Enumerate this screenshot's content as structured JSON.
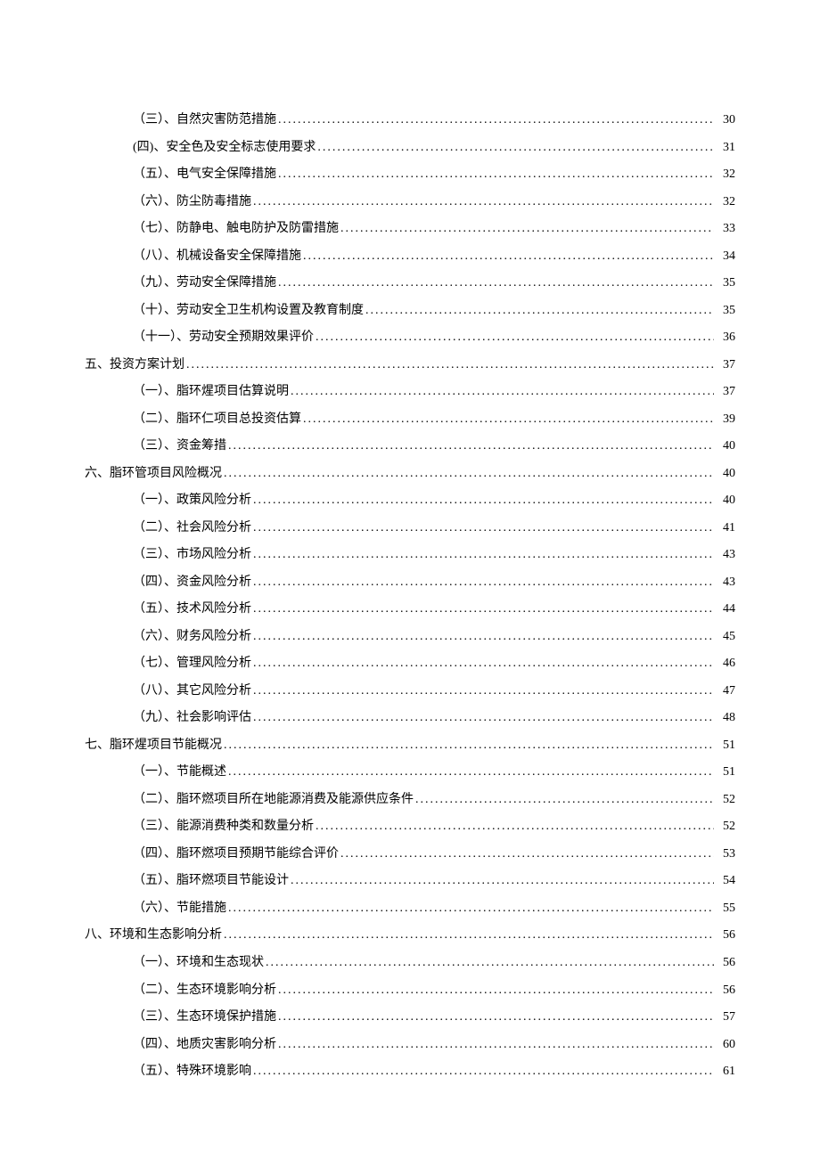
{
  "toc": {
    "entries": [
      {
        "level": 2,
        "label": "（三）、自然灾害防范措施",
        "page": "30"
      },
      {
        "level": 2,
        "label": "(四)、安全色及安全标志使用要求",
        "page": "31"
      },
      {
        "level": 2,
        "label": "（五）、电气安全保障措施",
        "page": "32"
      },
      {
        "level": 2,
        "label": "（六）、防尘防毒措施",
        "page": "32"
      },
      {
        "level": 2,
        "label": "（七）、防静电、触电防护及防雷措施",
        "page": "33"
      },
      {
        "level": 2,
        "label": "（八）、机械设备安全保障措施",
        "page": "34"
      },
      {
        "level": 2,
        "label": "（九）、劳动安全保障措施",
        "page": "35"
      },
      {
        "level": 2,
        "label": "（十）、劳动安全卫生机构设置及教育制度",
        "page": "35"
      },
      {
        "level": 2,
        "label": "（十一）、劳动安全预期效果评价",
        "page": "36"
      },
      {
        "level": 1,
        "label": "五、投资方案计划",
        "page": "37"
      },
      {
        "level": 2,
        "label": "（一）、脂环煋项目估算说明",
        "page": "37"
      },
      {
        "level": 2,
        "label": "（二）、脂环仁项目总投资估算",
        "page": "39"
      },
      {
        "level": 2,
        "label": "（三）、资金筹措",
        "page": "40"
      },
      {
        "level": 1,
        "label": "六、脂环管项目风险概况",
        "page": "40"
      },
      {
        "level": 2,
        "label": "（一）、政策风险分析",
        "page": "40"
      },
      {
        "level": 2,
        "label": "（二）、社会风险分析",
        "page": "41"
      },
      {
        "level": 2,
        "label": "（三）、市场风险分析",
        "page": "43"
      },
      {
        "level": 2,
        "label": "（四）、资金风险分析",
        "page": "43"
      },
      {
        "level": 2,
        "label": "（五）、技术风险分析",
        "page": "44"
      },
      {
        "level": 2,
        "label": "（六）、财务风险分析",
        "page": "45"
      },
      {
        "level": 2,
        "label": "（七）、管理风险分析",
        "page": "46"
      },
      {
        "level": 2,
        "label": "（八）、其它风险分析",
        "page": "47"
      },
      {
        "level": 2,
        "label": "（九）、社会影响评估",
        "page": "48"
      },
      {
        "level": 1,
        "label": "七、脂环煋项目节能概况",
        "page": "51"
      },
      {
        "level": 2,
        "label": "（一）、节能概述",
        "page": "51"
      },
      {
        "level": 2,
        "label": "（二）、脂环燃项目所在地能源消费及能源供应条件",
        "page": "52"
      },
      {
        "level": 2,
        "label": "（三）、能源消费种类和数量分析",
        "page": "52"
      },
      {
        "level": 2,
        "label": "（四）、脂环燃项目预期节能综合评价",
        "page": "53"
      },
      {
        "level": 2,
        "label": "（五）、脂环燃项目节能设计",
        "page": "54"
      },
      {
        "level": 2,
        "label": "（六）、节能措施",
        "page": "55"
      },
      {
        "level": 1,
        "label": "八、环境和生态影响分析",
        "page": "56"
      },
      {
        "level": 2,
        "label": "（一）、环境和生态现状",
        "page": "56"
      },
      {
        "level": 2,
        "label": "（二）、生态环境影响分析",
        "page": "56"
      },
      {
        "level": 2,
        "label": "（三）、生态环境保护措施",
        "page": "57"
      },
      {
        "level": 2,
        "label": "（四）、地质灾害影响分析",
        "page": "60"
      },
      {
        "level": 2,
        "label": "（五）、特殊环境影响",
        "page": "61"
      }
    ]
  }
}
